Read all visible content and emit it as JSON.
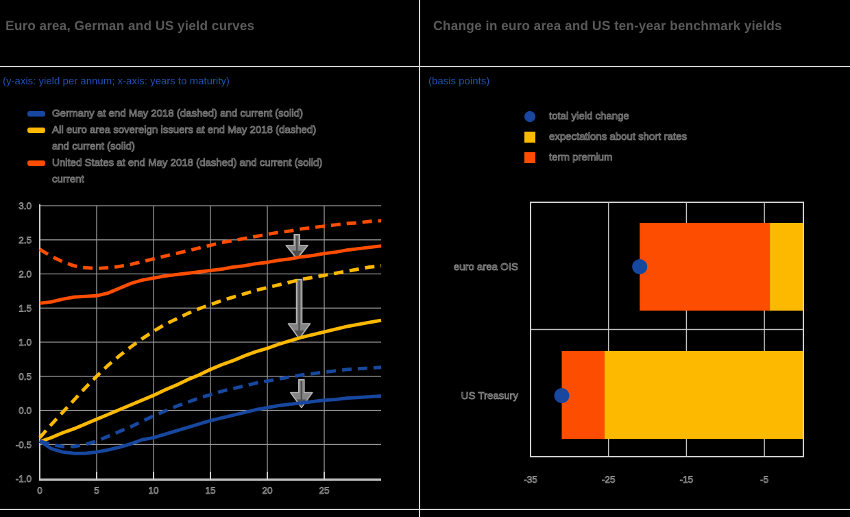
{
  "colors": {
    "blue": "#17479e",
    "yellow": "#fdb800",
    "orange": "#fc4d00",
    "title_gray": "#595959",
    "note_blue": "#2052b4",
    "grid_gray": "#9a9a9a",
    "axis_light": "#cfcfcf",
    "arrow_gray": "#8f8f8f",
    "background": "#000000"
  },
  "panels": {
    "left": {
      "title": "Euro area, German and US yield curves",
      "subtitle": "(y-axis: yield per annum; x-axis: years to maturity)",
      "legend": [
        {
          "color": "#17479e",
          "lines": [
            "Germany at end May 2018 (dashed) and current (solid)"
          ]
        },
        {
          "color": "#fdb800",
          "lines": [
            "All euro area sovereign issuers at end May 2018 (dashed)",
            "and current (solid)"
          ]
        },
        {
          "color": "#fc4d00",
          "lines": [
            "United States at end May 2018 (dashed) and current (solid)",
            "current"
          ]
        }
      ]
    },
    "right": {
      "title": "Change in euro area and US ten-year benchmark yields",
      "subtitle": "(basis points)",
      "legend": [
        {
          "color": "#17479e",
          "shape": "circle",
          "label": "total yield change"
        },
        {
          "color": "#fdb800",
          "shape": "square",
          "label": "expectations about short rates"
        },
        {
          "color": "#fc4d00",
          "shape": "square",
          "label": "term premium"
        }
      ]
    }
  },
  "chart_data": [
    {
      "type": "line",
      "title": "Euro area, German and US yield curves",
      "axis_note": "(y-axis: yield per annum; x-axis: years to maturity)",
      "xlabel": "years to maturity",
      "ylabel": "yield per annum",
      "xlim": [
        0,
        30
      ],
      "ylim": [
        -1.0,
        3.0
      ],
      "xticks": [
        0,
        5,
        10,
        15,
        20,
        25
      ],
      "yticks": [
        3.0,
        2.5,
        2.0,
        1.5,
        1.0,
        0.5,
        0.0,
        -0.5,
        -1.0
      ],
      "ytick_labels": [
        "3.0",
        "2.5",
        "2.0",
        "1.5",
        "1.0",
        "0.5",
        "0.0",
        "-0.5",
        "-1.0"
      ],
      "grid": true,
      "series": [
        {
          "id": "us-end-may-2018",
          "name": "United States at end May 2018",
          "color": "#fc4d00",
          "style": "dashed",
          "points": [
            [
              0,
              2.36
            ],
            [
              1,
              2.26
            ],
            [
              2,
              2.18
            ],
            [
              3,
              2.12
            ],
            [
              4,
              2.09
            ],
            [
              5,
              2.08
            ],
            [
              6,
              2.09
            ],
            [
              7,
              2.11
            ],
            [
              8,
              2.14
            ],
            [
              9,
              2.18
            ],
            [
              10,
              2.22
            ],
            [
              11,
              2.26
            ],
            [
              12,
              2.3
            ],
            [
              13,
              2.34
            ],
            [
              14,
              2.38
            ],
            [
              15,
              2.42
            ],
            [
              16,
              2.46
            ],
            [
              17,
              2.49
            ],
            [
              18,
              2.52
            ],
            [
              19,
              2.55
            ],
            [
              20,
              2.58
            ],
            [
              21,
              2.61
            ],
            [
              22,
              2.63
            ],
            [
              23,
              2.66
            ],
            [
              24,
              2.68
            ],
            [
              25,
              2.7
            ],
            [
              26,
              2.72
            ],
            [
              27,
              2.74
            ],
            [
              28,
              2.75
            ],
            [
              29,
              2.77
            ],
            [
              30,
              2.78
            ]
          ]
        },
        {
          "id": "us-current",
          "name": "United States current",
          "color": "#fc4d00",
          "style": "solid",
          "points": [
            [
              0,
              1.57
            ],
            [
              1,
              1.59
            ],
            [
              2,
              1.63
            ],
            [
              3,
              1.66
            ],
            [
              4,
              1.67
            ],
            [
              5,
              1.68
            ],
            [
              6,
              1.72
            ],
            [
              7,
              1.79
            ],
            [
              8,
              1.86
            ],
            [
              9,
              1.91
            ],
            [
              10,
              1.94
            ],
            [
              11,
              1.97
            ],
            [
              12,
              1.99
            ],
            [
              13,
              2.01
            ],
            [
              14,
              2.03
            ],
            [
              15,
              2.05
            ],
            [
              16,
              2.07
            ],
            [
              17,
              2.1
            ],
            [
              18,
              2.12
            ],
            [
              19,
              2.15
            ],
            [
              20,
              2.17
            ],
            [
              21,
              2.2
            ],
            [
              22,
              2.22
            ],
            [
              23,
              2.25
            ],
            [
              24,
              2.27
            ],
            [
              25,
              2.3
            ],
            [
              26,
              2.32
            ],
            [
              27,
              2.35
            ],
            [
              28,
              2.37
            ],
            [
              29,
              2.39
            ],
            [
              30,
              2.41
            ]
          ]
        },
        {
          "id": "ea-end-may-2018",
          "name": "All euro area sovereign issuers at end May 2018",
          "color": "#fdb800",
          "style": "dashed",
          "points": [
            [
              0,
              -0.4
            ],
            [
              1,
              -0.21
            ],
            [
              2,
              -0.03
            ],
            [
              3,
              0.15
            ],
            [
              4,
              0.33
            ],
            [
              5,
              0.5
            ],
            [
              6,
              0.66
            ],
            [
              7,
              0.8
            ],
            [
              8,
              0.93
            ],
            [
              9,
              1.05
            ],
            [
              10,
              1.16
            ],
            [
              11,
              1.26
            ],
            [
              12,
              1.34
            ],
            [
              13,
              1.42
            ],
            [
              14,
              1.49
            ],
            [
              15,
              1.55
            ],
            [
              16,
              1.61
            ],
            [
              17,
              1.66
            ],
            [
              18,
              1.71
            ],
            [
              19,
              1.76
            ],
            [
              20,
              1.8
            ],
            [
              21,
              1.84
            ],
            [
              22,
              1.88
            ],
            [
              23,
              1.92
            ],
            [
              24,
              1.95
            ],
            [
              25,
              1.98
            ],
            [
              26,
              2.01
            ],
            [
              27,
              2.04
            ],
            [
              28,
              2.07
            ],
            [
              29,
              2.1
            ],
            [
              30,
              2.12
            ]
          ]
        },
        {
          "id": "ea-current",
          "name": "All euro area sovereign issuers current",
          "color": "#fdb800",
          "style": "solid",
          "points": [
            [
              0,
              -0.46
            ],
            [
              1,
              -0.4
            ],
            [
              2,
              -0.33
            ],
            [
              3,
              -0.27
            ],
            [
              4,
              -0.2
            ],
            [
              5,
              -0.13
            ],
            [
              6,
              -0.06
            ],
            [
              7,
              0.01
            ],
            [
              8,
              0.08
            ],
            [
              9,
              0.15
            ],
            [
              10,
              0.22
            ],
            [
              11,
              0.3
            ],
            [
              12,
              0.37
            ],
            [
              13,
              0.45
            ],
            [
              14,
              0.52
            ],
            [
              15,
              0.6
            ],
            [
              16,
              0.67
            ],
            [
              17,
              0.73
            ],
            [
              18,
              0.8
            ],
            [
              19,
              0.86
            ],
            [
              20,
              0.91
            ],
            [
              21,
              0.97
            ],
            [
              22,
              1.02
            ],
            [
              23,
              1.07
            ],
            [
              24,
              1.11
            ],
            [
              25,
              1.15
            ],
            [
              26,
              1.19
            ],
            [
              27,
              1.23
            ],
            [
              28,
              1.26
            ],
            [
              29,
              1.29
            ],
            [
              30,
              1.32
            ]
          ]
        },
        {
          "id": "de-end-may-2018",
          "name": "Germany at end May 2018",
          "color": "#17479e",
          "style": "dashed",
          "points": [
            [
              0,
              -0.45
            ],
            [
              1,
              -0.5
            ],
            [
              2,
              -0.53
            ],
            [
              3,
              -0.53
            ],
            [
              4,
              -0.5
            ],
            [
              5,
              -0.45
            ],
            [
              6,
              -0.38
            ],
            [
              7,
              -0.31
            ],
            [
              8,
              -0.24
            ],
            [
              9,
              -0.16
            ],
            [
              10,
              -0.08
            ],
            [
              11,
              -0.01
            ],
            [
              12,
              0.06
            ],
            [
              13,
              0.12
            ],
            [
              14,
              0.18
            ],
            [
              15,
              0.23
            ],
            [
              16,
              0.28
            ],
            [
              17,
              0.32
            ],
            [
              18,
              0.36
            ],
            [
              19,
              0.4
            ],
            [
              20,
              0.43
            ],
            [
              21,
              0.46
            ],
            [
              22,
              0.49
            ],
            [
              23,
              0.52
            ],
            [
              24,
              0.54
            ],
            [
              25,
              0.56
            ],
            [
              26,
              0.58
            ],
            [
              27,
              0.6
            ],
            [
              28,
              0.61
            ],
            [
              29,
              0.62
            ],
            [
              30,
              0.63
            ]
          ]
        },
        {
          "id": "de-current",
          "name": "Germany current",
          "color": "#17479e",
          "style": "solid",
          "points": [
            [
              0,
              -0.45
            ],
            [
              1,
              -0.56
            ],
            [
              2,
              -0.61
            ],
            [
              3,
              -0.63
            ],
            [
              4,
              -0.63
            ],
            [
              5,
              -0.61
            ],
            [
              6,
              -0.58
            ],
            [
              7,
              -0.54
            ],
            [
              8,
              -0.49
            ],
            [
              9,
              -0.43
            ],
            [
              10,
              -0.4
            ],
            [
              11,
              -0.35
            ],
            [
              12,
              -0.3
            ],
            [
              13,
              -0.25
            ],
            [
              14,
              -0.2
            ],
            [
              15,
              -0.15
            ],
            [
              16,
              -0.11
            ],
            [
              17,
              -0.07
            ],
            [
              18,
              -0.03
            ],
            [
              19,
              0.01
            ],
            [
              20,
              0.04
            ],
            [
              21,
              0.07
            ],
            [
              22,
              0.09
            ],
            [
              23,
              0.11
            ],
            [
              24,
              0.13
            ],
            [
              25,
              0.15
            ],
            [
              26,
              0.16
            ],
            [
              27,
              0.18
            ],
            [
              28,
              0.19
            ],
            [
              29,
              0.2
            ],
            [
              30,
              0.21
            ]
          ]
        }
      ],
      "arrows": [
        {
          "x": 22.6,
          "y_from": 2.58,
          "y_to": 2.22
        },
        {
          "x": 22.8,
          "y_from": 1.92,
          "y_to": 1.05
        },
        {
          "x": 23.0,
          "y_from": 0.45,
          "y_to": 0.04
        }
      ]
    },
    {
      "type": "bar",
      "orientation": "horizontal",
      "title": "Change in euro area and US ten-year benchmark yields",
      "unit_note": "(basis points)",
      "xlim": [
        -35,
        0
      ],
      "xticks": [
        -35,
        -25,
        -15,
        -5
      ],
      "grid": true,
      "categories": [
        "euro area OIS",
        "US Treasury"
      ],
      "rows": [
        {
          "category": "euro area OIS",
          "total_yield_change": -21,
          "segments": [
            {
              "name": "term premium",
              "color": "#fc4d00",
              "from": -21,
              "to": -4.3
            },
            {
              "name": "expectations about short rates",
              "color": "#fdb800",
              "from": -4.3,
              "to": 0
            }
          ]
        },
        {
          "category": "US Treasury",
          "total_yield_change": -31,
          "segments": [
            {
              "name": "term premium",
              "color": "#fc4d00",
              "from": -31,
              "to": -25.5
            },
            {
              "name": "expectations about short rates",
              "color": "#fdb800",
              "from": -25.5,
              "to": 0
            }
          ]
        }
      ],
      "marker": {
        "name": "total yield change",
        "color": "#17479e"
      }
    }
  ]
}
